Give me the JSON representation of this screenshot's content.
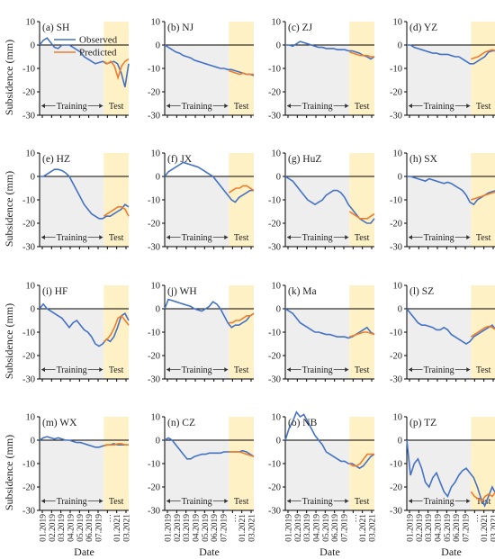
{
  "figure": {
    "ylabel": "Subsidence (mm)",
    "xlabel": "Date",
    "training_label": "Training",
    "test_label": "Test",
    "legend": [
      "Observed",
      "Predicted"
    ],
    "colors": {
      "observed": "#4472c4",
      "predicted": "#ed7d31",
      "training_bg": "#eeeeee",
      "test_bg": "#fff1c6"
    }
  },
  "chart_data": [
    {
      "type": "line",
      "title": "(a) SH",
      "ylim": [
        -30,
        10
      ],
      "yticks": [
        10,
        0,
        -10,
        -20,
        -30
      ],
      "series": [
        {
          "name": "Observed",
          "values": [
            0,
            2,
            3,
            1,
            -1,
            -1.5,
            0,
            0,
            0,
            -1,
            -2,
            -3,
            -5,
            -6,
            -7,
            -8,
            -7.5,
            -7,
            -8,
            -7.5,
            -7,
            -8,
            -12,
            -18,
            -8
          ]
        },
        {
          "name": "Predicted",
          "values": [
            -7,
            -8,
            -7,
            -9,
            -14,
            -9,
            -7,
            -6
          ]
        }
      ]
    },
    {
      "title": "(b) NJ",
      "ylim": [
        -30,
        10
      ],
      "yticks": [
        10,
        0,
        -10,
        -20,
        -30
      ],
      "series": [
        {
          "name": "Observed",
          "values": [
            0,
            -1,
            -2,
            -3,
            -3.5,
            -4.5,
            -5,
            -5.5,
            -6.5,
            -7,
            -7.5,
            -8,
            -8.5,
            -9,
            -9.5,
            -10,
            -10,
            -10.5,
            -10.5,
            -11,
            -11.5,
            -12,
            -12.5,
            -12.5,
            -13
          ]
        },
        {
          "name": "Predicted",
          "values": [
            -11,
            -11.5,
            -12,
            -12.5,
            -12,
            -12.5,
            -12.5,
            -12.5
          ]
        }
      ]
    },
    {
      "title": "(c) ZJ",
      "ylim": [
        -30,
        10
      ],
      "yticks": [
        10,
        0,
        -10,
        -20,
        -30
      ],
      "series": [
        {
          "name": "Observed",
          "values": [
            0,
            0,
            -0.5,
            0.5,
            1.5,
            1,
            0.5,
            0,
            -0.5,
            -1,
            -1,
            -1.5,
            -1.5,
            -1.5,
            -2,
            -2,
            -2,
            -2.5,
            -2.5,
            -3,
            -3.5,
            -4.5,
            -5,
            -6,
            -5
          ]
        },
        {
          "name": "Predicted",
          "values": [
            -3,
            -3.5,
            -4,
            -4.5,
            -4.5,
            -4.5,
            -5,
            -5
          ]
        }
      ]
    },
    {
      "title": "(d) YZ",
      "ylim": [
        -30,
        10
      ],
      "yticks": [
        10,
        0,
        -10,
        -20,
        -30
      ],
      "series": [
        {
          "name": "Observed",
          "values": [
            0,
            0,
            -1,
            -1.5,
            -2,
            -2.5,
            -3,
            -3.5,
            -3.5,
            -4,
            -4,
            -4,
            -4.5,
            -5,
            -5,
            -6,
            -7,
            -8,
            -8,
            -7,
            -6,
            -5,
            -3,
            -2.5,
            -2.5
          ]
        },
        {
          "name": "Predicted",
          "values": [
            -6,
            -5.5,
            -5,
            -4,
            -3,
            -2.5,
            -2,
            -2.5
          ]
        }
      ]
    },
    {
      "title": "(e) HZ",
      "ylim": [
        -30,
        10
      ],
      "yticks": [
        10,
        0,
        -10,
        -20,
        -30
      ],
      "series": [
        {
          "name": "Observed",
          "values": [
            0,
            0,
            1,
            2,
            3,
            3,
            2.5,
            1.5,
            0,
            -3,
            -6,
            -9,
            -12,
            -14,
            -16,
            -17,
            -18,
            -18,
            -17,
            -17,
            -16,
            -15,
            -14,
            -12,
            -13
          ]
        },
        {
          "name": "Predicted",
          "values": [
            -17,
            -16,
            -15,
            -14,
            -13,
            -13,
            -14,
            -17
          ]
        }
      ]
    },
    {
      "title": "(f) JX",
      "ylim": [
        -30,
        10
      ],
      "yticks": [
        10,
        0,
        -10,
        -20,
        -30
      ],
      "series": [
        {
          "name": "Observed",
          "values": [
            0,
            2,
            3,
            4,
            5,
            6,
            5.5,
            5,
            4.5,
            4,
            3,
            2,
            1,
            0,
            -2,
            -4,
            -6,
            -8,
            -10,
            -11,
            -9,
            -8,
            -7,
            -6,
            -6
          ]
        },
        {
          "name": "Predicted",
          "values": [
            -7,
            -6,
            -5,
            -5,
            -4,
            -4,
            -5,
            -6
          ]
        }
      ]
    },
    {
      "title": "(g) HuZ",
      "ylim": [
        -30,
        10
      ],
      "yticks": [
        10,
        0,
        -10,
        -20,
        -30
      ],
      "series": [
        {
          "name": "Observed",
          "values": [
            0,
            -1,
            -2,
            -4,
            -6,
            -8,
            -10,
            -11,
            -12,
            -11,
            -10,
            -8,
            -7,
            -6,
            -6,
            -7,
            -9,
            -12,
            -14,
            -16,
            -18,
            -19,
            -20,
            -20,
            -18
          ]
        },
        {
          "name": "Predicted",
          "values": [
            -15,
            -16,
            -17,
            -18,
            -18,
            -18,
            -17,
            -16
          ]
        }
      ]
    },
    {
      "title": "(h) SX",
      "ylim": [
        -30,
        10
      ],
      "yticks": [
        10,
        0,
        -10,
        -20,
        -30
      ],
      "series": [
        {
          "name": "Observed",
          "values": [
            0,
            0,
            -0.5,
            -1,
            -1.5,
            -2,
            -1,
            -1.5,
            -2,
            -2.5,
            -3,
            -2.5,
            -3,
            -4,
            -5,
            -6,
            -8,
            -11,
            -12,
            -10,
            -9,
            -8,
            -7,
            -6.5,
            -6
          ]
        },
        {
          "name": "Predicted",
          "values": [
            -10,
            -9.5,
            -9,
            -8.5,
            -8,
            -7.5,
            -7,
            -6.5
          ]
        }
      ]
    },
    {
      "title": "(i) HF",
      "ylim": [
        -30,
        10
      ],
      "yticks": [
        10,
        0,
        -10,
        -20,
        -30
      ],
      "series": [
        {
          "name": "Observed",
          "values": [
            0,
            2,
            0,
            -1,
            -2,
            -3,
            -4,
            -6,
            -8,
            -6,
            -5,
            -7,
            -9,
            -10,
            -12,
            -15,
            -16,
            -15,
            -13,
            -14,
            -12,
            -8,
            -3,
            -2,
            -5
          ]
        },
        {
          "name": "Predicted",
          "values": [
            -14,
            -13,
            -11,
            -8,
            -4,
            -3,
            -5,
            -7
          ]
        }
      ]
    },
    {
      "title": "(j) WH",
      "ylim": [
        -30,
        10
      ],
      "yticks": [
        10,
        0,
        -10,
        -20,
        -30
      ],
      "series": [
        {
          "name": "Observed",
          "values": [
            0,
            4,
            3.5,
            3,
            2.5,
            2,
            1.5,
            1,
            0,
            -0.5,
            -1,
            0,
            1,
            3,
            2,
            0,
            -3,
            -6,
            -8,
            -7,
            -7,
            -6,
            -5,
            -3,
            -2
          ]
        },
        {
          "name": "Predicted",
          "values": [
            -6,
            -6,
            -5,
            -5,
            -4,
            -3,
            -3,
            -2
          ]
        }
      ]
    },
    {
      "title": "(k) Ma",
      "ylim": [
        -30,
        10
      ],
      "yticks": [
        10,
        0,
        -10,
        -20,
        -30
      ],
      "series": [
        {
          "name": "Observed",
          "values": [
            0,
            -1,
            -2,
            -4,
            -6,
            -7,
            -8,
            -9,
            -10,
            -10,
            -10.5,
            -11,
            -11,
            -11.5,
            -12,
            -12,
            -12,
            -12.5,
            -12,
            -11,
            -10,
            -9,
            -8,
            -10,
            -11
          ]
        },
        {
          "name": "Predicted",
          "values": [
            -12,
            -11.5,
            -11,
            -10.5,
            -10,
            -10,
            -10.5,
            -11
          ]
        }
      ]
    },
    {
      "title": "(l) SZ",
      "ylim": [
        -30,
        10
      ],
      "yticks": [
        10,
        0,
        -10,
        -20,
        -30
      ],
      "series": [
        {
          "name": "Observed",
          "values": [
            0,
            -2,
            -4,
            -6,
            -7,
            -7,
            -7.5,
            -8,
            -9,
            -9,
            -8,
            -9,
            -11,
            -12,
            -13,
            -14,
            -15,
            -14,
            -12,
            -11,
            -10,
            -9,
            -8,
            -7,
            -9
          ]
        },
        {
          "name": "Predicted",
          "values": [
            -12,
            -11,
            -10,
            -9,
            -8,
            -7.5,
            -8,
            -9
          ]
        }
      ]
    },
    {
      "title": "(m) WX",
      "ylim": [
        -30,
        10
      ],
      "yticks": [
        10,
        0,
        -10,
        -20,
        -30
      ],
      "series": [
        {
          "name": "Observed",
          "values": [
            0,
            1,
            1.5,
            1,
            0.5,
            1,
            0.5,
            0,
            0,
            -0.5,
            -1,
            -1,
            -1.5,
            -2,
            -2.5,
            -3,
            -3,
            -2.5,
            -2,
            -2,
            -1.5,
            -2,
            -2,
            -2,
            -2
          ]
        },
        {
          "name": "Predicted",
          "values": [
            -2.5,
            -2,
            -2,
            -2,
            -1.5,
            -1.5,
            -2,
            -2
          ]
        }
      ]
    },
    {
      "title": "(n) CZ",
      "ylim": [
        -30,
        10
      ],
      "yticks": [
        10,
        0,
        -10,
        -20,
        -30
      ],
      "series": [
        {
          "name": "Observed",
          "values": [
            0,
            1,
            0,
            -2,
            -4,
            -6,
            -8,
            -8,
            -7,
            -6.5,
            -6,
            -6,
            -5.5,
            -5.5,
            -5.5,
            -5.5,
            -5,
            -5,
            -5,
            -5,
            -5,
            -4.5,
            -5,
            -6,
            -7
          ]
        },
        {
          "name": "Predicted",
          "values": [
            -5,
            -5,
            -5,
            -5,
            -5.5,
            -6,
            -6.5,
            -7
          ]
        }
      ]
    },
    {
      "title": "(o) NB",
      "ylim": [
        -30,
        10
      ],
      "yticks": [
        10,
        0,
        -10,
        -20,
        -30
      ],
      "series": [
        {
          "name": "Observed",
          "values": [
            0,
            5,
            8,
            12,
            10,
            11,
            8,
            5,
            2,
            0,
            -2,
            -5,
            -6,
            -7,
            -8,
            -9,
            -9,
            -10,
            -10,
            -11,
            -12,
            -11,
            -9,
            -7,
            -6
          ]
        },
        {
          "name": "Predicted",
          "values": [
            -10,
            -11,
            -11,
            -10,
            -8,
            -6,
            -6,
            -6
          ]
        }
      ]
    },
    {
      "title": "(p) TZ",
      "ylim": [
        -30,
        10
      ],
      "yticks": [
        10,
        0,
        -10,
        -20,
        -30
      ],
      "series": [
        {
          "name": "Observed",
          "values": [
            0,
            -15,
            -10,
            -8,
            -12,
            -18,
            -20,
            -16,
            -14,
            -18,
            -22,
            -24,
            -20,
            -18,
            -15,
            -13,
            -12,
            -14,
            -16,
            -20,
            -25,
            -28,
            -24,
            -20,
            -23
          ]
        },
        {
          "name": "Predicted",
          "values": [
            -22,
            -24,
            -25,
            -26,
            -24,
            -23,
            -24,
            -22
          ]
        }
      ]
    }
  ],
  "x_ticks": [
    "01.2019",
    "02.2019",
    "03.2019",
    "04.2019",
    "05.2019",
    "06.2019",
    "07.2019",
    "…",
    "01.2021",
    "03.2021"
  ]
}
